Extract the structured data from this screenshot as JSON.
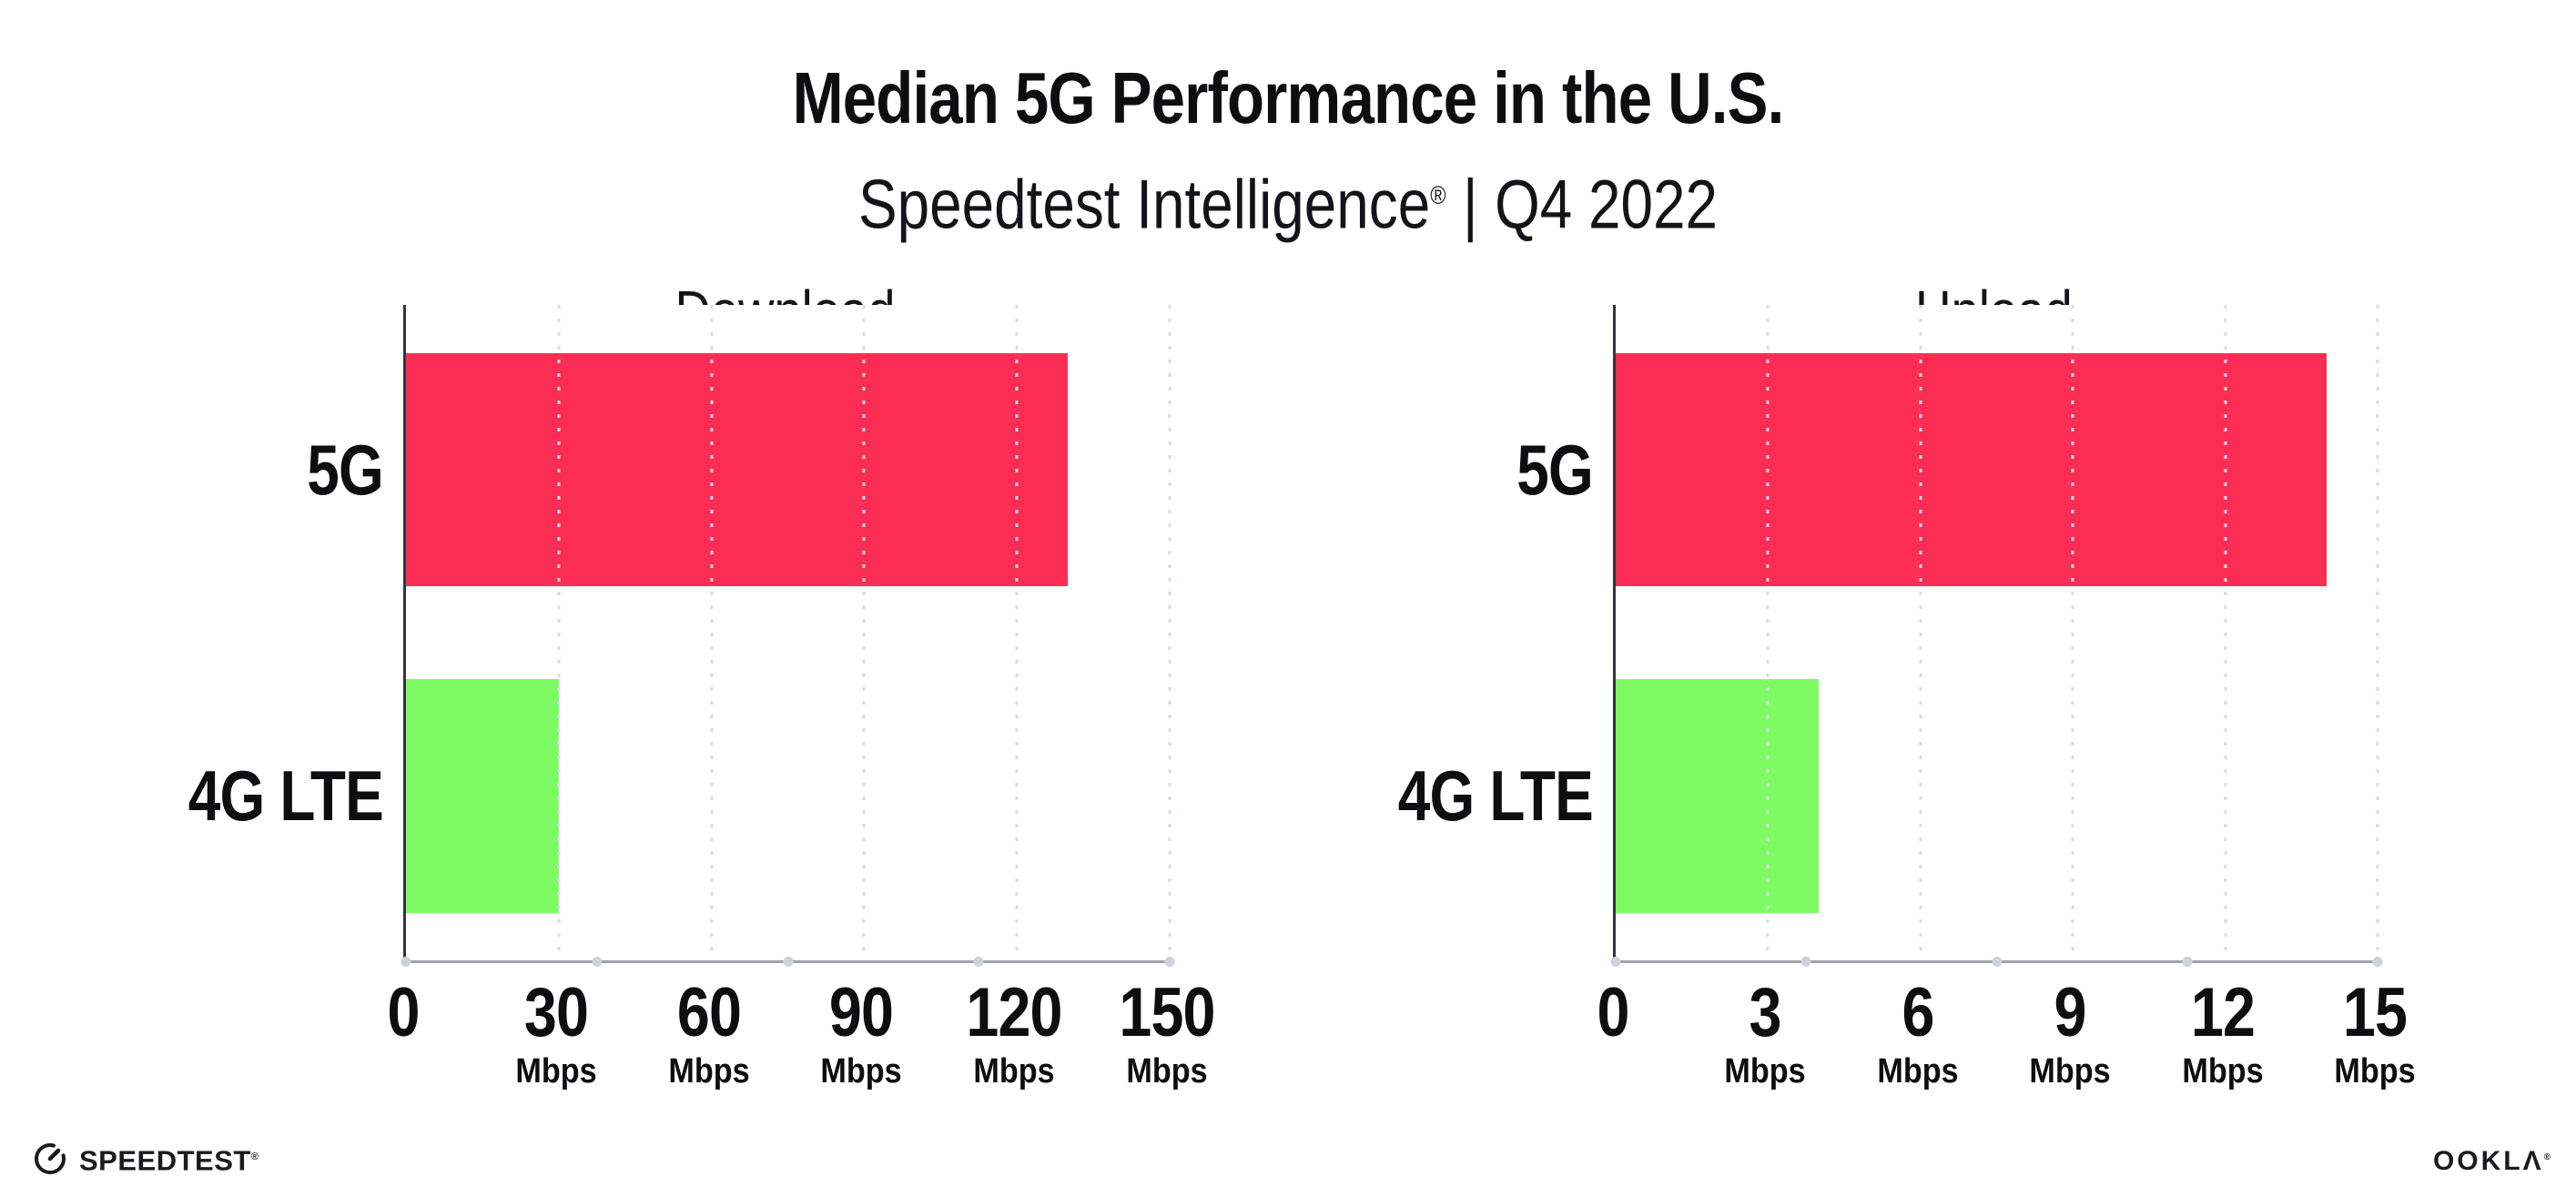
{
  "header": {
    "title": "Median 5G Performance in the U.S.",
    "subtitle": {
      "brand": "Speedtest Intelligence",
      "registered": "®",
      "separator": "|",
      "period": "Q4 2022"
    }
  },
  "chart_data": [
    {
      "type": "bar",
      "orientation": "horizontal",
      "title": "Download",
      "categories": [
        "5G",
        "4G LTE"
      ],
      "values": [
        130,
        30
      ],
      "unit": "Mbps",
      "xlim": [
        0,
        150
      ],
      "xticks": [
        0,
        30,
        60,
        90,
        120,
        150
      ],
      "bar_colors": [
        "#FC2D55",
        "#7EFB63"
      ],
      "grid": "dotted-vertical",
      "legend": "none"
    },
    {
      "type": "bar",
      "orientation": "horizontal",
      "title": "Upload",
      "categories": [
        "5G",
        "4G LTE"
      ],
      "values": [
        14,
        4
      ],
      "unit": "Mbps",
      "xlim": [
        0,
        15
      ],
      "xticks": [
        0,
        3,
        6,
        9,
        12,
        15
      ],
      "bar_colors": [
        "#FC2D55",
        "#7EFB63"
      ],
      "grid": "dotted-vertical",
      "legend": "none"
    }
  ],
  "footer": {
    "speedtest": {
      "wordmark": "SPEEDTEST",
      "registered": "®"
    },
    "ookla": {
      "wordmark": "OOKLΛ",
      "registered": "®"
    }
  },
  "colors": {
    "bar_5g": "#FC2D55",
    "bar_4g_lte": "#7EFB63",
    "axis_left": "#34343e",
    "axis_bottom": "#a0a2ae",
    "gridline": "#d9dbe8",
    "text": "#0e0e10"
  }
}
